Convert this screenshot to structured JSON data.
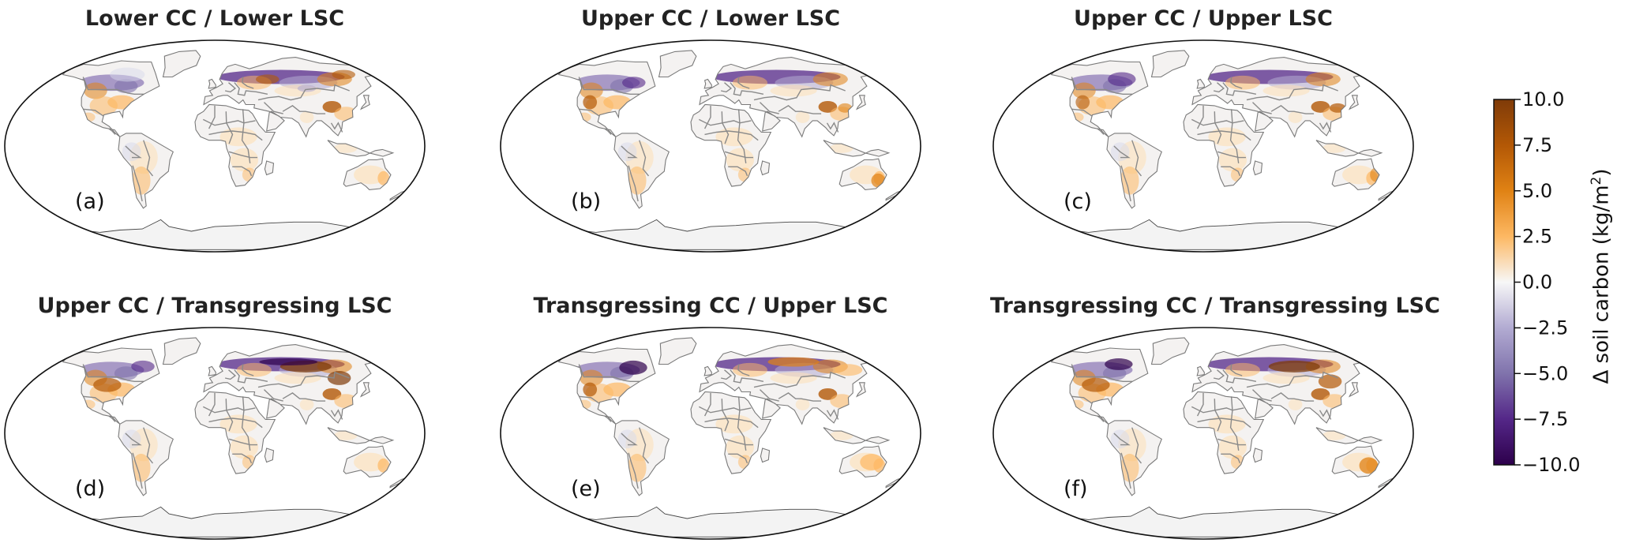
{
  "panels": [
    {
      "title": "Lower CC / Lower LSC",
      "label": "(a)"
    },
    {
      "title": "Upper CC / Lower LSC",
      "label": "(b)"
    },
    {
      "title": "Upper CC / Upper LSC",
      "label": "(c)"
    },
    {
      "title": "Upper CC / Transgressing LSC",
      "label": "(d)"
    },
    {
      "title": "Transgressing CC / Upper LSC",
      "label": "(e)"
    },
    {
      "title": "Transgressing CC / Transgressing LSC",
      "label": "(f)"
    }
  ],
  "colorbar": {
    "label": "Δ soil carbon (kg/m",
    "label_sup": "2",
    "label_end": ")",
    "min": -10.0,
    "max": 10.0,
    "ticks": [
      "10.0",
      "7.5",
      "5.0",
      "2.5",
      "0.0",
      "−2.5",
      "−5.0",
      "−7.5",
      "−10.0"
    ],
    "colormap": "PuOr_r",
    "color_low": "#2d004b",
    "color_mid": "#f7f7f7",
    "color_high": "#7f3b08"
  }
}
